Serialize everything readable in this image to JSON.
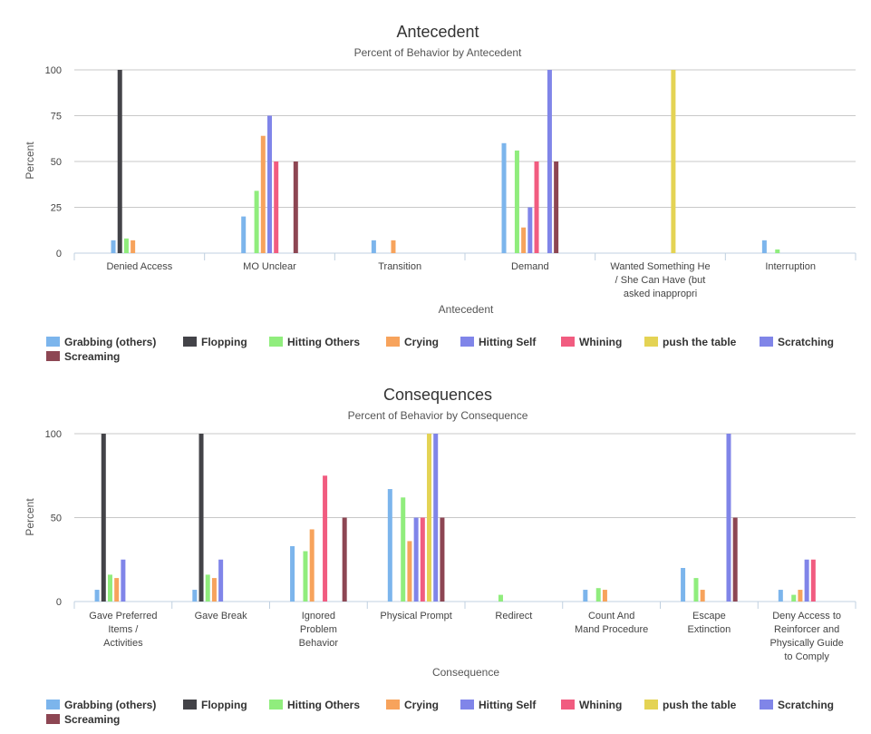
{
  "chart_data": [
    {
      "type": "bar",
      "title": "Antecedent",
      "subtitle": "Percent of Behavior by Antecedent",
      "xlabel": "Antecedent",
      "ylabel": "Percent",
      "ylim": [
        0,
        100
      ],
      "yticks": [
        0,
        25,
        50,
        75,
        100
      ],
      "grid": true,
      "legend_placement": "bottom",
      "categories": [
        [
          "Denied Access"
        ],
        [
          "MO Unclear"
        ],
        [
          "Transition"
        ],
        [
          "Demand"
        ],
        [
          "Wanted Something He",
          "/ She Can Have (but",
          "asked inappropri"
        ],
        [
          "Interruption"
        ]
      ],
      "series": [
        {
          "name": "Grabbing (others)",
          "color": "#7cb5ec",
          "values": [
            7,
            20,
            7,
            60,
            0,
            7
          ]
        },
        {
          "name": "Flopping",
          "color": "#434348",
          "values": [
            100,
            0,
            0,
            0,
            0,
            0
          ]
        },
        {
          "name": "Hitting Others",
          "color": "#90ed7d",
          "values": [
            8,
            34,
            0,
            56,
            0,
            2
          ]
        },
        {
          "name": "Crying",
          "color": "#f7a35c",
          "values": [
            7,
            64,
            7,
            14,
            0,
            0
          ]
        },
        {
          "name": "Hitting Self",
          "color": "#8085e9",
          "values": [
            0,
            75,
            0,
            25,
            0,
            0
          ]
        },
        {
          "name": "Whining",
          "color": "#f15c80",
          "values": [
            0,
            50,
            0,
            50,
            0,
            0
          ]
        },
        {
          "name": "push the table",
          "color": "#e4d354",
          "values": [
            0,
            0,
            0,
            0,
            100,
            0
          ]
        },
        {
          "name": "Scratching",
          "color": "#8085e8",
          "values": [
            0,
            0,
            0,
            100,
            0,
            0
          ]
        },
        {
          "name": "Screaming",
          "color": "#8d4653",
          "values": [
            0,
            50,
            0,
            50,
            0,
            0
          ]
        }
      ]
    },
    {
      "type": "bar",
      "title": "Consequences",
      "subtitle": "Percent of Behavior by Consequence",
      "xlabel": "Consequence",
      "ylabel": "Percent",
      "ylim": [
        0,
        100
      ],
      "yticks": [
        0,
        50,
        100
      ],
      "grid": true,
      "legend_placement": "bottom",
      "categories": [
        [
          "Gave Preferred",
          "Items /",
          "Activities"
        ],
        [
          "Gave Break"
        ],
        [
          "Ignored",
          "Problem",
          "Behavior"
        ],
        [
          "Physical Prompt"
        ],
        [
          "Redirect"
        ],
        [
          "Count And",
          "Mand Procedure"
        ],
        [
          "Escape",
          "Extinction"
        ],
        [
          "Deny Access to",
          "Reinforcer and",
          "Physically Guide",
          "to Comply"
        ]
      ],
      "series": [
        {
          "name": "Grabbing (others)",
          "color": "#7cb5ec",
          "values": [
            7,
            7,
            33,
            67,
            0,
            7,
            20,
            7
          ]
        },
        {
          "name": "Flopping",
          "color": "#434348",
          "values": [
            100,
            100,
            0,
            0,
            0,
            0,
            0,
            0
          ]
        },
        {
          "name": "Hitting Others",
          "color": "#90ed7d",
          "values": [
            16,
            16,
            30,
            62,
            4,
            8,
            14,
            4
          ]
        },
        {
          "name": "Crying",
          "color": "#f7a35c",
          "values": [
            14,
            14,
            43,
            36,
            0,
            7,
            7,
            7
          ]
        },
        {
          "name": "Hitting Self",
          "color": "#8085e9",
          "values": [
            25,
            25,
            0,
            50,
            0,
            0,
            0,
            25
          ]
        },
        {
          "name": "Whining",
          "color": "#f15c80",
          "values": [
            0,
            0,
            75,
            50,
            0,
            0,
            0,
            25
          ]
        },
        {
          "name": "push the table",
          "color": "#e4d354",
          "values": [
            0,
            0,
            0,
            100,
            0,
            0,
            0,
            0
          ]
        },
        {
          "name": "Scratching",
          "color": "#8085e8",
          "values": [
            0,
            0,
            0,
            100,
            0,
            0,
            100,
            0
          ]
        },
        {
          "name": "Screaming",
          "color": "#8d4653",
          "values": [
            0,
            0,
            50,
            50,
            0,
            0,
            50,
            0
          ]
        }
      ]
    }
  ]
}
